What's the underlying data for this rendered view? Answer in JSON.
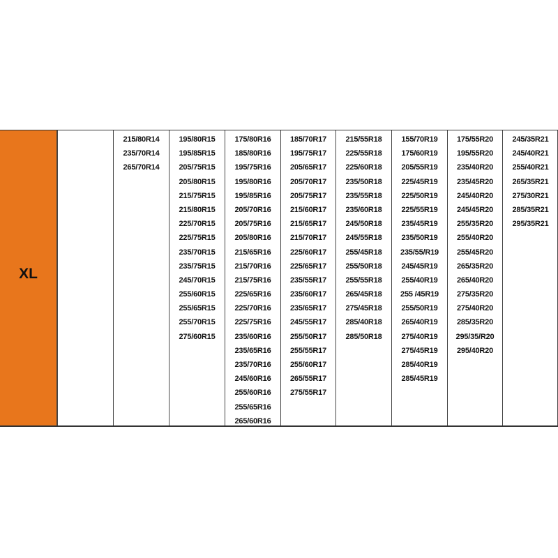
{
  "size_label": "XL",
  "accent_color": "#e8761c",
  "columns": [
    [
      "215/80R14",
      "235/70R14",
      "265/70R14"
    ],
    [
      "195/80R15",
      "195/85R15",
      "205/75R15",
      "205/80R15",
      "215/75R15",
      "215/80R15",
      "225/70R15",
      "225/75R15",
      "235/70R15",
      "235/75R15",
      "245/70R15",
      "255/60R15",
      "255/65R15",
      "255/70R15",
      "275/60R15"
    ],
    [
      "175/80R16",
      "185/80R16",
      "195/75R16",
      "195/80R16",
      "195/85R16",
      "205/70R16",
      "205/75R16",
      "205/80R16",
      "215/65R16",
      "215/70R16",
      "215/75R16",
      "225/65R16",
      "225/70R16",
      "225/75R16",
      "235/60R16",
      "235/65R16",
      "235/70R16",
      "245/60R16",
      "255/60R16",
      "255/65R16",
      "265/60R16"
    ],
    [
      "185/70R17",
      "195/75R17",
      "205/65R17",
      "205/70R17",
      "205/75R17",
      "215/60R17",
      "215/65R17",
      "215/70R17",
      "225/60R17",
      "225/65R17",
      "235/55R17",
      "235/60R17",
      "235/65R17",
      "245/55R17",
      "255/50R17",
      "255/55R17",
      "255/60R17",
      "265/55R17",
      "275/55R17"
    ],
    [
      "215/55R18",
      "225/55R18",
      "225/60R18",
      "235/50R18",
      "235/55R18",
      "235/60R18",
      "245/50R18",
      "245/55R18",
      "255/45R18",
      "255/50R18",
      "255/55R18",
      "265/45R18",
      "275/45R18",
      "285/40R18",
      "285/50R18"
    ],
    [
      "155/70R19",
      "175/60R19",
      "205/55R19",
      "225/45R19",
      "225/50R19",
      "225/55R19",
      "235/45R19",
      "235/50R19",
      "235/55/R19",
      "245/45R19",
      "255/40R19",
      "255 /45R19",
      "255/50R19",
      "265/40R19",
      "275/40R19",
      "275/45R19",
      "285/40R19",
      "285/45R19"
    ],
    [
      "175/55R20",
      "195/55R20",
      "235/40R20",
      "235/45R20",
      "245/40R20",
      "245/45R20",
      "255/35R20",
      "255/40R20",
      "255/45R20",
      "265/35R20",
      "265/40R20",
      "275/35R20",
      "275/40R20",
      "285/35R20",
      "295/35/R20",
      "295/40R20"
    ],
    [
      "245/35R21",
      "245/40R21",
      "255/40R21",
      "265/35R21",
      "275/30R21",
      "285/35R21",
      "295/35R21"
    ]
  ]
}
